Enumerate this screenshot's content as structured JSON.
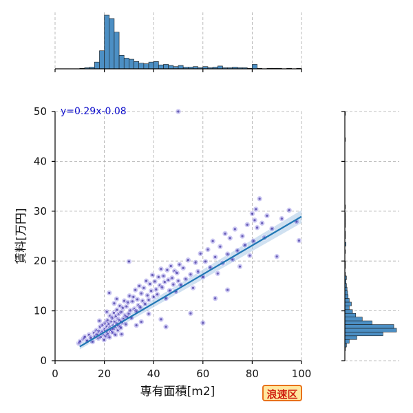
{
  "chart_data": {
    "type": "scatter",
    "xlabel": "専有面積[m2]",
    "ylabel": "賃料[万円]",
    "xlim": [
      0,
      100
    ],
    "ylim": [
      0,
      50
    ],
    "xticks": [
      0,
      20,
      40,
      60,
      80,
      100
    ],
    "yticks": [
      0,
      10,
      20,
      30,
      40,
      50
    ],
    "grid": true,
    "regression": {
      "equation": "y=0.29x-0.08",
      "slope": 0.29,
      "intercept": -0.08,
      "x_range": [
        10,
        100
      ],
      "color": "#1f77b4"
    },
    "scatter_color": "#3322cc",
    "marginal_x_hist": {
      "bin_width": 2,
      "bins": [
        {
          "x0": 10,
          "count": 1
        },
        {
          "x0": 12,
          "count": 2
        },
        {
          "x0": 14,
          "count": 3
        },
        {
          "x0": 16,
          "count": 12
        },
        {
          "x0": 18,
          "count": 32
        },
        {
          "x0": 20,
          "count": 95
        },
        {
          "x0": 22,
          "count": 89
        },
        {
          "x0": 24,
          "count": 65
        },
        {
          "x0": 26,
          "count": 24
        },
        {
          "x0": 28,
          "count": 19
        },
        {
          "x0": 30,
          "count": 17
        },
        {
          "x0": 32,
          "count": 13
        },
        {
          "x0": 34,
          "count": 10
        },
        {
          "x0": 36,
          "count": 9
        },
        {
          "x0": 38,
          "count": 12
        },
        {
          "x0": 40,
          "count": 13
        },
        {
          "x0": 42,
          "count": 7
        },
        {
          "x0": 44,
          "count": 8
        },
        {
          "x0": 46,
          "count": 6
        },
        {
          "x0": 48,
          "count": 4
        },
        {
          "x0": 50,
          "count": 6
        },
        {
          "x0": 52,
          "count": 3
        },
        {
          "x0": 54,
          "count": 3
        },
        {
          "x0": 56,
          "count": 4
        },
        {
          "x0": 58,
          "count": 2
        },
        {
          "x0": 60,
          "count": 4
        },
        {
          "x0": 62,
          "count": 2
        },
        {
          "x0": 64,
          "count": 3
        },
        {
          "x0": 66,
          "count": 5
        },
        {
          "x0": 68,
          "count": 2
        },
        {
          "x0": 70,
          "count": 2
        },
        {
          "x0": 72,
          "count": 3
        },
        {
          "x0": 74,
          "count": 2
        },
        {
          "x0": 76,
          "count": 2
        },
        {
          "x0": 78,
          "count": 1
        },
        {
          "x0": 80,
          "count": 8
        },
        {
          "x0": 82,
          "count": 1
        },
        {
          "x0": 86,
          "count": 1
        },
        {
          "x0": 88,
          "count": 1
        },
        {
          "x0": 90,
          "count": 1
        },
        {
          "x0": 94,
          "count": 1
        },
        {
          "x0": 98,
          "count": 1
        }
      ]
    },
    "marginal_y_hist": {
      "bin_width": 0.75,
      "bins": [
        {
          "y0": 2.0,
          "count": 1
        },
        {
          "y0": 2.75,
          "count": 3
        },
        {
          "y0": 3.5,
          "count": 8
        },
        {
          "y0": 4.25,
          "count": 22
        },
        {
          "y0": 5.0,
          "count": 70
        },
        {
          "y0": 5.75,
          "count": 95
        },
        {
          "y0": 6.5,
          "count": 90
        },
        {
          "y0": 7.25,
          "count": 50
        },
        {
          "y0": 8.0,
          "count": 32
        },
        {
          "y0": 8.75,
          "count": 20
        },
        {
          "y0": 9.5,
          "count": 14
        },
        {
          "y0": 10.25,
          "count": 8
        },
        {
          "y0": 11.0,
          "count": 12
        },
        {
          "y0": 11.75,
          "count": 8
        },
        {
          "y0": 12.5,
          "count": 6
        },
        {
          "y0": 13.25,
          "count": 5
        },
        {
          "y0": 14.0,
          "count": 4
        },
        {
          "y0": 14.75,
          "count": 3
        },
        {
          "y0": 15.5,
          "count": 2
        },
        {
          "y0": 16.25,
          "count": 3
        },
        {
          "y0": 17.0,
          "count": 1
        },
        {
          "y0": 18.5,
          "count": 1
        },
        {
          "y0": 19.25,
          "count": 1
        },
        {
          "y0": 21.5,
          "count": 1
        },
        {
          "y0": 23.0,
          "count": 2
        },
        {
          "y0": 24.5,
          "count": 1
        },
        {
          "y0": 25.25,
          "count": 1
        },
        {
          "y0": 26.75,
          "count": 1
        },
        {
          "y0": 27.5,
          "count": 1
        },
        {
          "y0": 28.25,
          "count": 1
        },
        {
          "y0": 29.0,
          "count": 1
        },
        {
          "y0": 30.5,
          "count": 1
        },
        {
          "y0": 44.0,
          "count": 1
        },
        {
          "y0": 49.25,
          "count": 1
        }
      ]
    },
    "points": [
      [
        9.6,
        3.5
      ],
      [
        10.2,
        3.9
      ],
      [
        11.5,
        4.4
      ],
      [
        12.1,
        4.8
      ],
      [
        13.0,
        4.0
      ],
      [
        13.8,
        5.2
      ],
      [
        14.5,
        4.6
      ],
      [
        15.2,
        3.8
      ],
      [
        15.8,
        5.6
      ],
      [
        16.2,
        4.9
      ],
      [
        16.8,
        6.1
      ],
      [
        17.2,
        5.3
      ],
      [
        17.6,
        4.5
      ],
      [
        18.0,
        5.9
      ],
      [
        18.3,
        6.8
      ],
      [
        18.7,
        4.8
      ],
      [
        19.0,
        5.5
      ],
      [
        19.3,
        7.2
      ],
      [
        19.6,
        6.0
      ],
      [
        19.9,
        4.2
      ],
      [
        20.1,
        5.1
      ],
      [
        20.3,
        6.4
      ],
      [
        20.5,
        7.6
      ],
      [
        20.7,
        5.8
      ],
      [
        20.9,
        4.9
      ],
      [
        21.1,
        6.9
      ],
      [
        21.3,
        8.1
      ],
      [
        21.5,
        5.4
      ],
      [
        21.7,
        6.2
      ],
      [
        21.9,
        7.4
      ],
      [
        22.1,
        4.7
      ],
      [
        22.3,
        9.0
      ],
      [
        22.5,
        6.7
      ],
      [
        22.7,
        5.9
      ],
      [
        22.9,
        7.9
      ],
      [
        23.1,
        6.3
      ],
      [
        23.3,
        8.6
      ],
      [
        23.5,
        5.6
      ],
      [
        23.7,
        7.1
      ],
      [
        23.9,
        9.6
      ],
      [
        24.1,
        6.5
      ],
      [
        24.3,
        7.8
      ],
      [
        24.5,
        5.2
      ],
      [
        24.7,
        8.9
      ],
      [
        24.9,
        6.9
      ],
      [
        25.1,
        10.2
      ],
      [
        25.3,
        7.4
      ],
      [
        25.5,
        6.1
      ],
      [
        25.7,
        8.3
      ],
      [
        25.9,
        9.4
      ],
      [
        26.1,
        7.0
      ],
      [
        26.3,
        11.0
      ],
      [
        26.5,
        8.0
      ],
      [
        26.7,
        6.6
      ],
      [
        26.9,
        9.8
      ],
      [
        27.2,
        7.7
      ],
      [
        27.5,
        10.6
      ],
      [
        27.8,
        8.5
      ],
      [
        28.1,
        12.0
      ],
      [
        28.4,
        9.1
      ],
      [
        28.7,
        7.3
      ],
      [
        29.0,
        10.9
      ],
      [
        29.3,
        8.8
      ],
      [
        29.6,
        11.7
      ],
      [
        29.9,
        9.5
      ],
      [
        30.2,
        13.0
      ],
      [
        30.6,
        10.1
      ],
      [
        31.0,
        8.6
      ],
      [
        31.4,
        11.9
      ],
      [
        31.8,
        12.8
      ],
      [
        32.2,
        10.4
      ],
      [
        32.6,
        14.2
      ],
      [
        33.0,
        9.9
      ],
      [
        33.4,
        12.3
      ],
      [
        33.8,
        11.1
      ],
      [
        34.2,
        15.0
      ],
      [
        34.6,
        10.7
      ],
      [
        35.0,
        13.5
      ],
      [
        35.5,
        12.0
      ],
      [
        36.0,
        14.6
      ],
      [
        36.5,
        11.4
      ],
      [
        37.0,
        16.0
      ],
      [
        37.5,
        13.1
      ],
      [
        38.0,
        12.2
      ],
      [
        38.5,
        15.4
      ],
      [
        39.0,
        14.0
      ],
      [
        39.5,
        17.2
      ],
      [
        40.0,
        12.8
      ],
      [
        40.5,
        15.9
      ],
      [
        41.0,
        14.3
      ],
      [
        41.5,
        13.3
      ],
      [
        42.0,
        16.8
      ],
      [
        42.5,
        15.1
      ],
      [
        43.0,
        18.4
      ],
      [
        43.5,
        14.7
      ],
      [
        44.0,
        17.0
      ],
      [
        44.5,
        15.8
      ],
      [
        45.0,
        12.5
      ],
      [
        45.5,
        18.2
      ],
      [
        46.0,
        16.2
      ],
      [
        46.5,
        14.1
      ],
      [
        47.0,
        19.0
      ],
      [
        47.5,
        16.6
      ],
      [
        48.0,
        15.3
      ],
      [
        48.5,
        18.0
      ],
      [
        49.0,
        13.9
      ],
      [
        49.5,
        17.6
      ],
      [
        50.0,
        16.0
      ],
      [
        50.5,
        19.3
      ],
      [
        51.0,
        15.2
      ],
      [
        52.0,
        18.6
      ],
      [
        53.0,
        16.4
      ],
      [
        54.0,
        20.2
      ],
      [
        55.0,
        17.3
      ],
      [
        56.0,
        14.6
      ],
      [
        57.0,
        19.7
      ],
      [
        58.0,
        17.9
      ],
      [
        59.0,
        21.5
      ],
      [
        60.0,
        16.8
      ],
      [
        61.0,
        19.9
      ],
      [
        62.0,
        22.3
      ],
      [
        63.0,
        18.7
      ],
      [
        64.0,
        24.0
      ],
      [
        65.0,
        20.8
      ],
      [
        66.0,
        17.5
      ],
      [
        67.0,
        22.9
      ],
      [
        68.0,
        19.6
      ],
      [
        69.0,
        25.5
      ],
      [
        70.0,
        21.4
      ],
      [
        71.0,
        24.6
      ],
      [
        72.0,
        20.3
      ],
      [
        73.0,
        26.4
      ],
      [
        74.0,
        22.1
      ],
      [
        75.0,
        18.9
      ],
      [
        76.0,
        25.0
      ],
      [
        77.0,
        23.2
      ],
      [
        78.0,
        27.3
      ],
      [
        79.0,
        21.1
      ],
      [
        80.0,
        29.5
      ],
      [
        80.5,
        24.0
      ],
      [
        81.0,
        28.2
      ],
      [
        81.5,
        30.4
      ],
      [
        82.0,
        26.7
      ],
      [
        83.0,
        32.5
      ],
      [
        84.0,
        27.6
      ],
      [
        85.0,
        24.7
      ],
      [
        86.0,
        29.1
      ],
      [
        88.0,
        26.5
      ],
      [
        90.0,
        20.9
      ],
      [
        92.0,
        28.5
      ],
      [
        95.0,
        30.2
      ],
      [
        98.0,
        27.9
      ],
      [
        99.0,
        24.1
      ],
      [
        50.0,
        50.0
      ],
      [
        30.0,
        19.9
      ],
      [
        22.0,
        13.6
      ],
      [
        25.0,
        12.4
      ],
      [
        35.0,
        7.8
      ],
      [
        43.0,
        8.3
      ],
      [
        60.0,
        7.6
      ],
      [
        21.0,
        9.8
      ],
      [
        24.0,
        11.5
      ],
      [
        27.0,
        5.3
      ],
      [
        33.0,
        7.1
      ],
      [
        38.0,
        9.4
      ],
      [
        18.0,
        8.0
      ],
      [
        70.0,
        14.2
      ],
      [
        65.0,
        12.5
      ],
      [
        55.0,
        9.5
      ],
      [
        45.0,
        6.8
      ]
    ]
  }
}
